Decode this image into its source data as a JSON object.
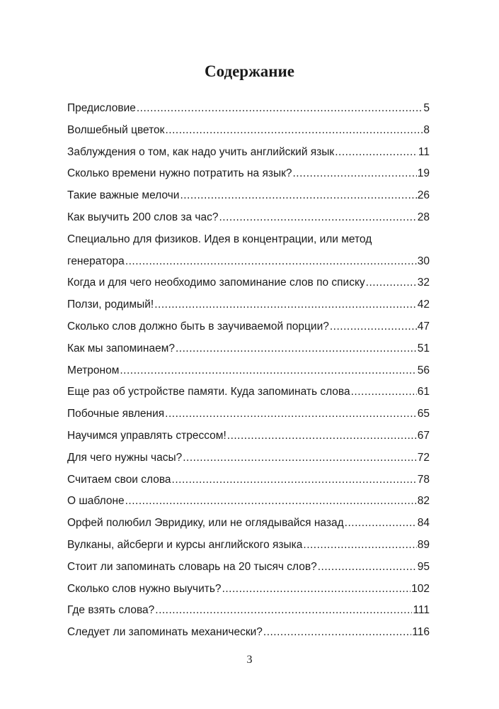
{
  "title": "Содержание",
  "entries": [
    {
      "text": "Предисловие",
      "page": "5"
    },
    {
      "text": "Волшебный цветок ",
      "page": "8"
    },
    {
      "text": "Заблуждения о том, как надо учить английский язык",
      "page": "11"
    },
    {
      "text": "Сколько времени нужно потратить на язык?",
      "page": "19"
    },
    {
      "text": "Такие важные мелочи",
      "page": "26"
    },
    {
      "text": "Как выучить 200 слов за час?",
      "page": "28"
    },
    {
      "first": "Специально для физиков. Идея в концентрации, или метод",
      "text": "генератора",
      "page": "30"
    },
    {
      "text": "Когда и для чего необходимо запоминание слов по списку",
      "page": "32"
    },
    {
      "text": "Ползи, родимый!",
      "page": "42"
    },
    {
      "text": "Сколько слов должно быть в заучиваемой порции?",
      "page": "47"
    },
    {
      "text": "Как мы запоминаем?",
      "page": "51"
    },
    {
      "text": "Метроном",
      "page": "56"
    },
    {
      "text": "Еще раз об устройстве памяти. Куда запоминать слова",
      "page": "61"
    },
    {
      "text": "Побочные явления",
      "page": "65"
    },
    {
      "text": "Научимся управлять стрессом!",
      "page": "67"
    },
    {
      "text": "Для чего нужны часы?",
      "page": "72"
    },
    {
      "text": "Считаем свои слова",
      "page": "78"
    },
    {
      "text": "О шаблоне",
      "page": "82"
    },
    {
      "text": "Орфей полюбил Эвридику, или не оглядывайся назад",
      "page": "84"
    },
    {
      "text": "Вулканы, айсберги и курсы английского языка",
      "page": "89"
    },
    {
      "text": "Стоит ли запоминать словарь на 20 тысяч слов?",
      "page": "95"
    },
    {
      "text": "Сколько слов нужно выучить?",
      "page": "102"
    },
    {
      "text": "Где взять слова?",
      "page": "111"
    },
    {
      "text": "Следует ли запоминать механически?",
      "page": "116"
    }
  ],
  "page_number": "3"
}
